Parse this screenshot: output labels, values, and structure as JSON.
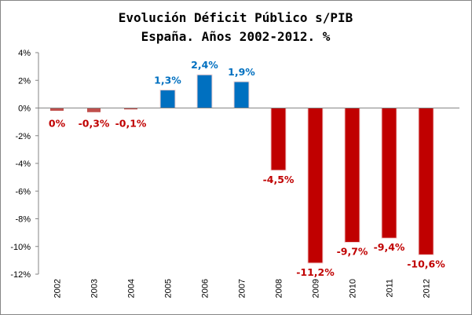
{
  "chart_data": {
    "type": "bar",
    "title": [
      "Evolución Déficit Público s/PIB",
      "España. Años 2002-2012. %"
    ],
    "categories": [
      "2002",
      "2003",
      "2004",
      "2005",
      "2006",
      "2007",
      "2008",
      "2009",
      "2010",
      "2011",
      "2012"
    ],
    "values": [
      -0.2,
      -0.3,
      -0.1,
      1.3,
      2.4,
      1.9,
      -4.5,
      -11.2,
      -9.7,
      -9.4,
      -10.6
    ],
    "data_labels": [
      "0%",
      "-0,3%",
      "-0,1%",
      "1,3%",
      "2,4%",
      "1,9%",
      "-4,5%",
      "-11,2%",
      "-9,7%",
      "-9,4%",
      "-10,6%"
    ],
    "ylim": [
      -12,
      4
    ],
    "yticks": [
      4,
      2,
      0,
      -2,
      -4,
      -6,
      -8,
      -10,
      -12
    ],
    "ytick_labels": [
      "4%",
      "2%",
      "0%",
      "-2%",
      "-4%",
      "-6%",
      "-8%",
      "-10%",
      "-12%"
    ],
    "xlabel": "",
    "ylabel": "",
    "grid": false,
    "legend": "none",
    "colors": {
      "positive": "#0070c0",
      "negative": "#c00000",
      "negative_light": "#c0504d"
    }
  }
}
